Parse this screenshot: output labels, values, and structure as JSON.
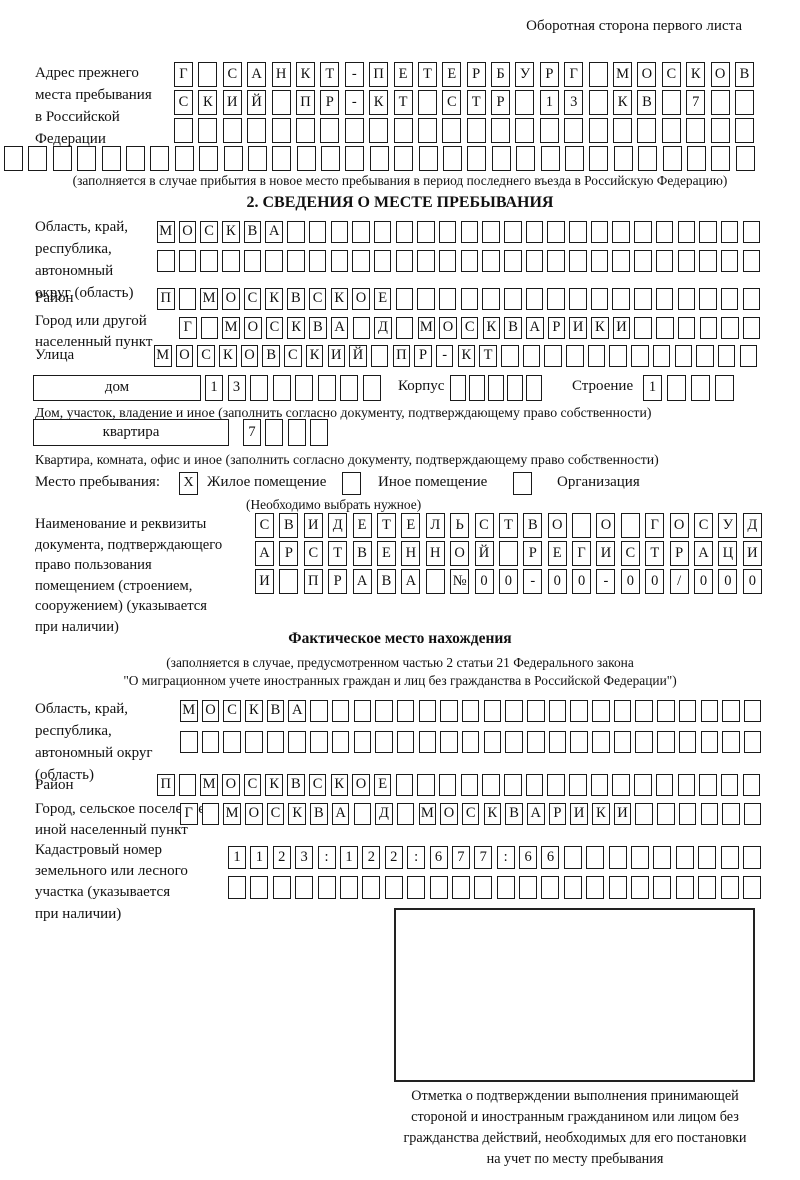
{
  "header": {
    "note": "Оборотная сторона первого листа"
  },
  "prev_address": {
    "label_lines": [
      "Адрес прежнего",
      "места пребывания",
      "в Российской",
      "Федерации"
    ],
    "rows": [
      "Г САНКТ-ПЕТЕРБУРГ МОСКОВ",
      "СКИЙ ПР-КТ СТР 13 КВ 7",
      "",
      ""
    ],
    "note": "(заполняется в случае прибытия в новое место пребывания в период последнего въезда в Российскую Федерацию)"
  },
  "section2": {
    "title": "2. СВЕДЕНИЯ О МЕСТЕ ПРЕБЫВАНИЯ",
    "region": {
      "label_lines": [
        "Область, край,",
        "республика,",
        "автономный",
        "округ (область)"
      ],
      "row1": "МОСКВА",
      "row2": ""
    },
    "district": {
      "label": "Район",
      "row": "П МОСКВСКОЕ"
    },
    "city": {
      "label_lines": [
        "Город или другой",
        "населенный пункт"
      ],
      "row": "Г МОСКВА Д МОСКВАРИКИ"
    },
    "street": {
      "label": "Улица",
      "row": "МОСКОВСКИЙ ПР-КТ"
    },
    "house": {
      "box_label": "дом",
      "cells": "13",
      "korpus_label": "Корпус",
      "korpus_cells": "",
      "stroenie_label": "Строение",
      "stroenie_cells": "1",
      "note": "Дом, участок, владение и иное (заполнить согласно документу, подтверждающему право собственности)"
    },
    "apartment": {
      "box_label": "квартира",
      "cells": "7",
      "note": "Квартира, комната, офис и иное (заполнить согласно документу, подтверждающему право собственности)"
    },
    "stay_type": {
      "label": "Место пребывания:",
      "options": [
        {
          "label": "Жилое помещение",
          "mark": "X"
        },
        {
          "label": "Иное помещение",
          "mark": ""
        },
        {
          "label": "Организация",
          "mark": ""
        }
      ],
      "note": "(Необходимо выбрать нужное)"
    },
    "document": {
      "label_lines": [
        "Наименование и реквизиты",
        "документа, подтверждающего",
        "право пользования",
        "помещением (строением,",
        "сооружением) (указывается",
        "при наличии)"
      ],
      "rows": [
        "СВИДЕТЕЛЬСТВО О ГОСУД",
        "АРСТВЕННОЙ РЕГИСТРАЦИ",
        "И ПРАВА №00-00-00/000"
      ]
    }
  },
  "actual_location": {
    "title": "Фактическое место нахождения",
    "note_line1": "(заполняется в случае, предусмотренном частью 2 статьи 21 Федерального закона",
    "note_line2": "\"О миграционном учете иностранных граждан и лиц без гражданства в Российской Федерации\")",
    "region": {
      "label_lines": [
        "Область, край,",
        "республика,",
        "автономный округ",
        "(область)"
      ],
      "row1": "МОСКВА",
      "row2": ""
    },
    "district": {
      "label": "Район",
      "row": "П МОСКВСКОЕ"
    },
    "city": {
      "label_lines": [
        "Город, сельское поселение,",
        "иной населенный пункт"
      ],
      "row": "Г МОСКВА Д МОСКВАРИКИ"
    },
    "cadastral": {
      "label_lines": [
        "Кадастровый номер",
        "земельного или лесного",
        "участка (указывается",
        "при наличии)"
      ],
      "row1": "1123:122:677:66",
      "row2": ""
    }
  },
  "confirmation": {
    "note_lines": [
      "Отметка о подтверждении выполнения принимающей",
      "стороной и иностранным гражданином или лицом без",
      "гражданства действий, необходимых для его постановки",
      "на учет по месту пребывания"
    ]
  }
}
